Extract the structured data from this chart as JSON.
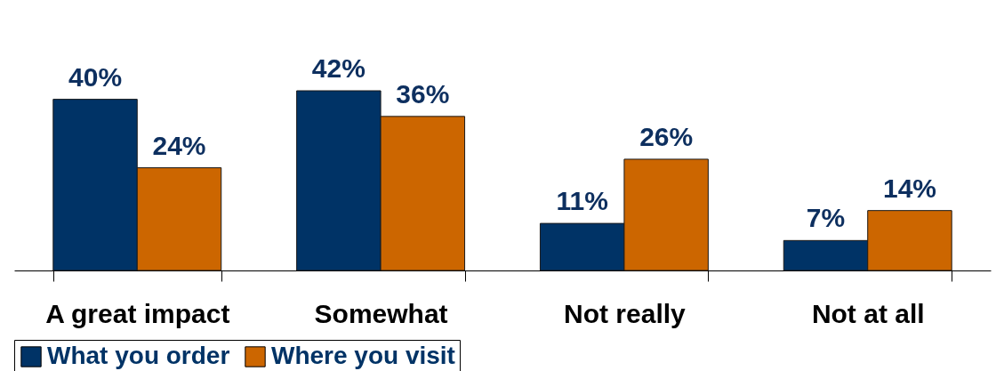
{
  "chart_data": {
    "type": "bar",
    "categories": [
      "A great impact",
      "Somewhat",
      "Not really",
      "Not at all"
    ],
    "series": [
      {
        "name": "What you order",
        "color": "#003366",
        "values": [
          40,
          42,
          11,
          7
        ],
        "value_labels": [
          "40%",
          "42%",
          "11%",
          "7%"
        ]
      },
      {
        "name": "Where you visit",
        "color": "#cc6600",
        "values": [
          24,
          36,
          26,
          14
        ],
        "value_labels": [
          "24%",
          "36%",
          "26%",
          "14%"
        ]
      }
    ],
    "legend": "bottom"
  }
}
